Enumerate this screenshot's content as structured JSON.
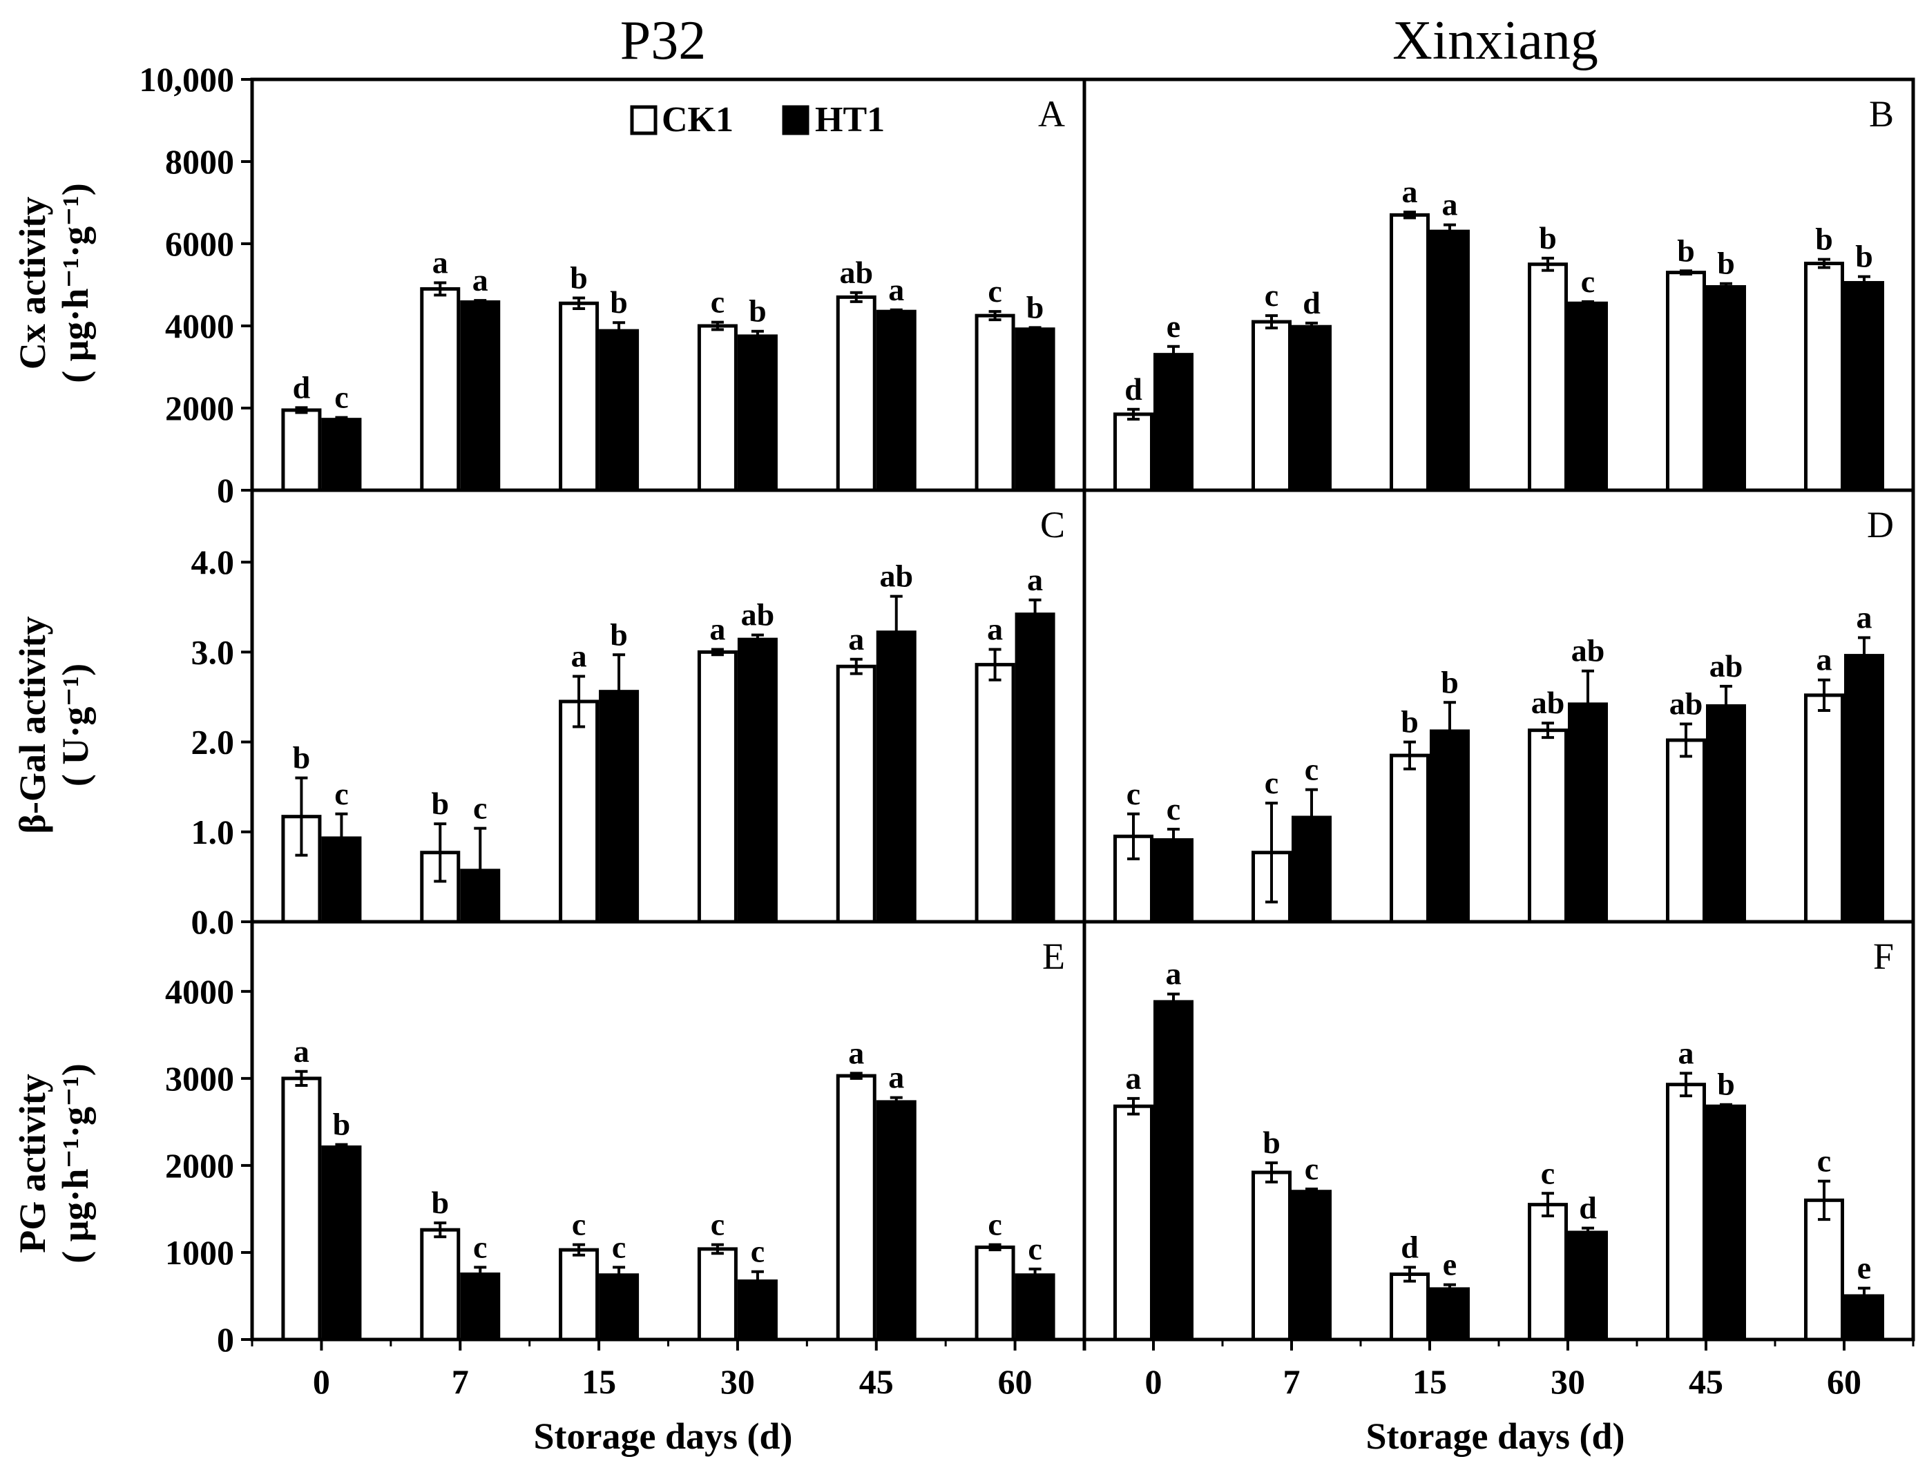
{
  "column_titles": [
    "P32",
    "Xinxiang"
  ],
  "legend": [
    {
      "label": "CK1",
      "fill": "#ffffff"
    },
    {
      "label": "HT1",
      "fill": "#000000"
    }
  ],
  "rows": [
    {
      "ylabel_main": "Cx activity",
      "ylabel_unit": "( μg·h⁻¹·g⁻¹)",
      "ylim": [
        0,
        10000
      ],
      "ticks": [
        0,
        2000,
        4000,
        6000,
        8000,
        10000
      ],
      "tick_labels": [
        "0",
        "2000",
        "4000",
        "6000",
        "8000",
        "10,000"
      ]
    },
    {
      "ylabel_main": "β-Gal activity",
      "ylabel_unit": "( U·g⁻¹)",
      "ylim": [
        0,
        4.8
      ],
      "ticks": [
        0,
        1,
        2,
        3,
        4
      ],
      "tick_labels": [
        "0.0",
        "1.0",
        "2.0",
        "3.0",
        "4.0"
      ]
    },
    {
      "ylabel_main": "PG activity",
      "ylabel_unit": "( μg·h⁻¹·g⁻¹)",
      "ylim": [
        0,
        4800
      ],
      "ticks": [
        0,
        1000,
        2000,
        3000,
        4000
      ],
      "tick_labels": [
        "0",
        "1000",
        "2000",
        "3000",
        "4000"
      ]
    }
  ],
  "xlabel": "Storage days (d)",
  "chart_data": [
    {
      "type": "bar",
      "panel": "A",
      "title": "P32",
      "xlabel": "Storage days (d)",
      "ylabel": "Cx activity ( μg·h⁻¹·g⁻¹)",
      "ylim": [
        0,
        10000
      ],
      "categories": [
        "0",
        "7",
        "15",
        "30",
        "45",
        "60"
      ],
      "series": [
        {
          "name": "CK1",
          "values": [
            1950,
            4900,
            4550,
            4000,
            4700,
            4250
          ],
          "errors": [
            60,
            150,
            130,
            90,
            110,
            100
          ],
          "letters": [
            "d",
            "a",
            "b",
            "c",
            "ab",
            "c"
          ]
        },
        {
          "name": "HT1",
          "values": [
            1720,
            4580,
            3880,
            3750,
            4350,
            3920
          ],
          "errors": [
            50,
            40,
            200,
            120,
            40,
            40
          ],
          "letters": [
            "c",
            "a",
            "b",
            "b",
            "a",
            "b"
          ]
        }
      ]
    },
    {
      "type": "bar",
      "panel": "B",
      "title": "Xinxiang",
      "xlabel": "Storage days (d)",
      "ylabel": "Cx activity ( μg·h⁻¹·g⁻¹)",
      "ylim": [
        0,
        10000
      ],
      "categories": [
        "0",
        "7",
        "15",
        "30",
        "45",
        "60"
      ],
      "series": [
        {
          "name": "CK1",
          "values": [
            1850,
            4100,
            6700,
            5500,
            5300,
            5520
          ],
          "errors": [
            120,
            150,
            70,
            150,
            40,
            100
          ],
          "letters": [
            "d",
            "c",
            "a",
            "b",
            "b",
            "b"
          ]
        },
        {
          "name": "HT1",
          "values": [
            3300,
            3980,
            6300,
            4550,
            4950,
            5050
          ],
          "errors": [
            200,
            90,
            160,
            40,
            80,
            150
          ],
          "letters": [
            "e",
            "d",
            "a",
            "c",
            "b",
            "b"
          ]
        }
      ]
    },
    {
      "type": "bar",
      "panel": "C",
      "title": "P32",
      "xlabel": "Storage days (d)",
      "ylabel": "β-Gal activity ( U·g⁻¹)",
      "ylim": [
        0,
        4.8
      ],
      "categories": [
        "0",
        "7",
        "15",
        "30",
        "45",
        "60"
      ],
      "series": [
        {
          "name": "CK1",
          "values": [
            1.17,
            0.77,
            2.45,
            3.0,
            2.84,
            2.86
          ],
          "errors": [
            0.43,
            0.32,
            0.28,
            0.03,
            0.08,
            0.17
          ],
          "letters": [
            "b",
            "b",
            "a",
            "a",
            "a",
            "a"
          ]
        },
        {
          "name": "HT1",
          "values": [
            0.93,
            0.57,
            2.56,
            3.14,
            3.22,
            3.42
          ],
          "errors": [
            0.27,
            0.47,
            0.41,
            0.05,
            0.4,
            0.16
          ],
          "letters": [
            "c",
            "c",
            "b",
            "ab",
            "ab",
            "a"
          ]
        }
      ]
    },
    {
      "type": "bar",
      "panel": "D",
      "title": "Xinxiang",
      "xlabel": "Storage days (d)",
      "ylabel": "β-Gal activity ( U·g⁻¹)",
      "ylim": [
        0,
        4.8
      ],
      "categories": [
        "0",
        "7",
        "15",
        "30",
        "45",
        "60"
      ],
      "series": [
        {
          "name": "CK1",
          "values": [
            0.95,
            0.77,
            1.85,
            2.13,
            2.02,
            2.52
          ],
          "errors": [
            0.25,
            0.55,
            0.15,
            0.08,
            0.18,
            0.17
          ],
          "letters": [
            "c",
            "c",
            "b",
            "ab",
            "ab",
            "a"
          ]
        },
        {
          "name": "HT1",
          "values": [
            0.91,
            1.16,
            2.12,
            2.42,
            2.4,
            2.96
          ],
          "errors": [
            0.12,
            0.31,
            0.32,
            0.37,
            0.22,
            0.2
          ],
          "letters": [
            "c",
            "c",
            "b",
            "ab",
            "ab",
            "a"
          ]
        }
      ]
    },
    {
      "type": "bar",
      "panel": "E",
      "title": "P32",
      "xlabel": "Storage days (d)",
      "ylabel": "PG activity ( μg·h⁻¹·g⁻¹)",
      "ylim": [
        0,
        4800
      ],
      "categories": [
        "0",
        "7",
        "15",
        "30",
        "45",
        "60"
      ],
      "series": [
        {
          "name": "CK1",
          "values": [
            3000,
            1260,
            1030,
            1040,
            3030,
            1060
          ],
          "errors": [
            80,
            80,
            60,
            50,
            30,
            30
          ],
          "letters": [
            "a",
            "b",
            "c",
            "c",
            "a",
            "c"
          ]
        },
        {
          "name": "HT1",
          "values": [
            2210,
            750,
            740,
            670,
            2730,
            740
          ],
          "errors": [
            30,
            80,
            90,
            110,
            50,
            70
          ],
          "letters": [
            "b",
            "c",
            "c",
            "c",
            "a",
            "c"
          ]
        }
      ]
    },
    {
      "type": "bar",
      "panel": "F",
      "title": "Xinxiang",
      "xlabel": "Storage days (d)",
      "ylabel": "PG activity ( μg·h⁻¹·g⁻¹)",
      "ylim": [
        0,
        4800
      ],
      "categories": [
        "0",
        "7",
        "15",
        "30",
        "45",
        "60"
      ],
      "series": [
        {
          "name": "CK1",
          "values": [
            2680,
            1920,
            750,
            1550,
            2930,
            1600
          ],
          "errors": [
            90,
            110,
            80,
            130,
            130,
            220
          ],
          "letters": [
            "a",
            "b",
            "d",
            "c",
            "a",
            "c"
          ]
        },
        {
          "name": "HT1",
          "values": [
            3880,
            1700,
            580,
            1230,
            2680,
            500
          ],
          "errors": [
            90,
            30,
            50,
            50,
            20,
            90
          ],
          "letters": [
            "a",
            "c",
            "e",
            "d",
            "b",
            "e"
          ]
        }
      ]
    }
  ]
}
